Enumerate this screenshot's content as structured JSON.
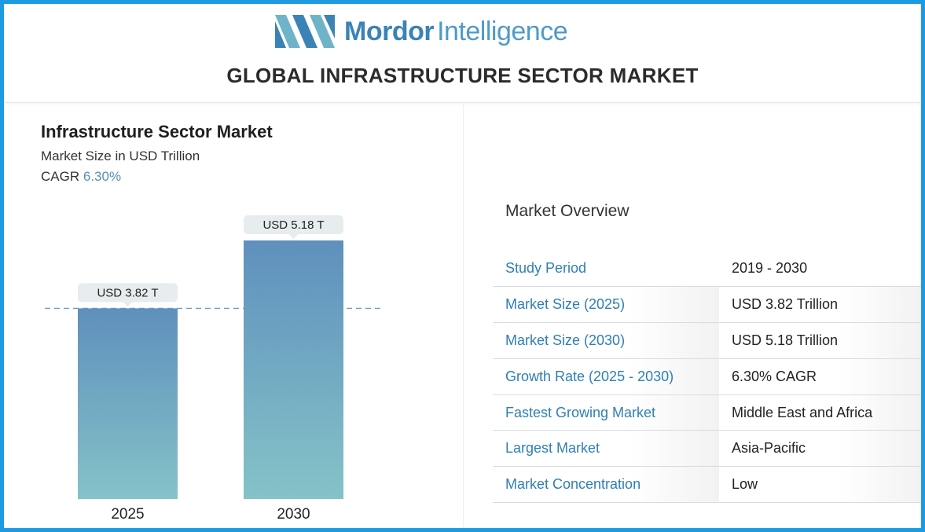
{
  "brand": {
    "name_bold": "Mordor",
    "name_light": "Intelligence",
    "colors": {
      "frame": "#1e9be0",
      "logo": "#3b83b5",
      "accent_text": "#2f7fb5"
    }
  },
  "page_title": "GLOBAL INFRASTRUCTURE SECTOR MARKET",
  "chart_data": {
    "type": "bar",
    "title": "Infrastructure Sector Market",
    "subtitle": "Market Size in USD Trillion",
    "cagr_label": "CAGR",
    "cagr_value": "6.30%",
    "categories": [
      "2025",
      "2030"
    ],
    "values": [
      3.82,
      5.18
    ],
    "data_labels": [
      "USD 3.82 T",
      "USD 5.18 T"
    ],
    "ylim": [
      0,
      5.18
    ],
    "reference_line": 3.82,
    "grid": false,
    "bar_gradient": [
      "#5f90bd",
      "#84c3c8"
    ]
  },
  "overview": {
    "title": "Market Overview",
    "rows": [
      {
        "key": "Study Period",
        "value": "2019 - 2030"
      },
      {
        "key": "Market Size (2025)",
        "value": "USD 3.82 Trillion"
      },
      {
        "key": "Market Size (2030)",
        "value": "USD 5.18 Trillion"
      },
      {
        "key": "Growth Rate (2025 - 2030)",
        "value": "6.30% CAGR"
      },
      {
        "key": "Fastest Growing Market",
        "value": "Middle East and Africa"
      },
      {
        "key": "Largest Market",
        "value": "Asia-Pacific"
      },
      {
        "key": "Market Concentration",
        "value": "Low"
      }
    ]
  }
}
